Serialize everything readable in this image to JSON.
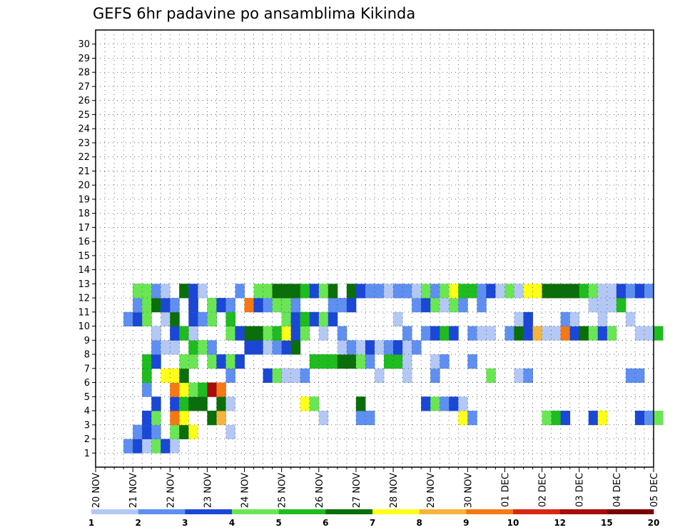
{
  "chart_data": {
    "type": "heatmap",
    "title": "GEFS 6hr padavine po ansamblima Kikinda",
    "y_members": [
      "1",
      "2",
      "3",
      "4",
      "5",
      "6",
      "7",
      "8",
      "9",
      "10",
      "11",
      "12",
      "13",
      "14",
      "15",
      "16",
      "17",
      "18",
      "19",
      "20",
      "21",
      "22",
      "23",
      "24",
      "25",
      "26",
      "27",
      "28",
      "29",
      "30"
    ],
    "x_ticks": [
      "20 NOV",
      "21 NOV",
      "22 NOV",
      "23 NOV",
      "24 NOV",
      "25 NOV",
      "26 NOV",
      "27 NOV",
      "28 NOV",
      "29 NOV",
      "30 NOV",
      "01 DEC",
      "02 DEC",
      "03 DEC",
      "04 DEC",
      "05 DEC"
    ],
    "x_steps_per_day": 4,
    "x_range_steps": [
      0,
      60
    ],
    "grid": true,
    "colorbar": {
      "labels": [
        "1",
        "2",
        "3",
        "4",
        "5",
        "6",
        "7",
        "8",
        "9",
        "10",
        "12",
        "15",
        "20"
      ],
      "colors": [
        "#b4c8f5",
        "#5f8ff0",
        "#1a47d6",
        "#6ae655",
        "#1ebc1e",
        "#0a6e0a",
        "#ffff1a",
        "#f5b43c",
        "#f57814",
        "#d72814",
        "#aa0a0a",
        "#780000"
      ]
    },
    "cells": [
      [
        1,
        3,
        0
      ],
      [
        1,
        3,
        1
      ],
      [
        1,
        4,
        2
      ],
      [
        1,
        5,
        0
      ],
      [
        1,
        6,
        3
      ],
      [
        1,
        7,
        2
      ],
      [
        1,
        8,
        0
      ],
      [
        2,
        4,
        0
      ],
      [
        2,
        4,
        1
      ],
      [
        2,
        5,
        2
      ],
      [
        2,
        6,
        1
      ],
      [
        2,
        8,
        3
      ],
      [
        2,
        9,
        4
      ],
      [
        2,
        9,
        5
      ],
      [
        2,
        10,
        6
      ],
      [
        2,
        14,
        0
      ],
      [
        3,
        5,
        1
      ],
      [
        3,
        5,
        2
      ],
      [
        3,
        6,
        3
      ],
      [
        3,
        8,
        8
      ],
      [
        3,
        9,
        6
      ],
      [
        3,
        12,
        4
      ],
      [
        3,
        12,
        5
      ],
      [
        3,
        13,
        7
      ],
      [
        3,
        24,
        0
      ],
      [
        3,
        28,
        1
      ],
      [
        3,
        29,
        1
      ],
      [
        3,
        39,
        6
      ],
      [
        3,
        40,
        1
      ],
      [
        3,
        48,
        1
      ],
      [
        3,
        48,
        3
      ],
      [
        3,
        49,
        0
      ],
      [
        3,
        49,
        4
      ],
      [
        3,
        50,
        2
      ],
      [
        3,
        53,
        2
      ],
      [
        3,
        54,
        6
      ],
      [
        3,
        58,
        2
      ],
      [
        3,
        59,
        1
      ],
      [
        3,
        60,
        3
      ],
      [
        4,
        6,
        2
      ],
      [
        4,
        8,
        2
      ],
      [
        4,
        9,
        6
      ],
      [
        4,
        9,
        4
      ],
      [
        4,
        10,
        5
      ],
      [
        4,
        11,
        5
      ],
      [
        4,
        13,
        5
      ],
      [
        4,
        14,
        0
      ],
      [
        4,
        22,
        6
      ],
      [
        4,
        23,
        6
      ],
      [
        4,
        23,
        3
      ],
      [
        4,
        28,
        4
      ],
      [
        4,
        28,
        5
      ],
      [
        4,
        35,
        1
      ],
      [
        4,
        35,
        2
      ],
      [
        4,
        36,
        3
      ],
      [
        4,
        37,
        1
      ],
      [
        4,
        38,
        2
      ],
      [
        4,
        39,
        0
      ],
      [
        5,
        5,
        0
      ],
      [
        5,
        5,
        1
      ],
      [
        5,
        8,
        7
      ],
      [
        5,
        8,
        8
      ],
      [
        5,
        9,
        4
      ],
      [
        5,
        9,
        6
      ],
      [
        5,
        10,
        3
      ],
      [
        5,
        11,
        4
      ],
      [
        5,
        12,
        9
      ],
      [
        5,
        12,
        10
      ],
      [
        5,
        13,
        8
      ],
      [
        6,
        5,
        3
      ],
      [
        6,
        5,
        4
      ],
      [
        6,
        7,
        6
      ],
      [
        6,
        8,
        7
      ],
      [
        6,
        8,
        6
      ],
      [
        6,
        9,
        5
      ],
      [
        6,
        14,
        1
      ],
      [
        6,
        18,
        2
      ],
      [
        6,
        19,
        3
      ],
      [
        6,
        20,
        2
      ],
      [
        6,
        20,
        0
      ],
      [
        6,
        21,
        0
      ],
      [
        6,
        22,
        1
      ],
      [
        6,
        30,
        0
      ],
      [
        6,
        33,
        0
      ],
      [
        6,
        36,
        1
      ],
      [
        6,
        42,
        3
      ],
      [
        6,
        45,
        0
      ],
      [
        6,
        46,
        1
      ],
      [
        6,
        57,
        1
      ],
      [
        6,
        58,
        1
      ],
      [
        7,
        5,
        4
      ],
      [
        7,
        6,
        4
      ],
      [
        7,
        6,
        2
      ],
      [
        7,
        9,
        3
      ],
      [
        7,
        10,
        3
      ],
      [
        7,
        12,
        3
      ],
      [
        7,
        13,
        2
      ],
      [
        7,
        14,
        5
      ],
      [
        7,
        14,
        3
      ],
      [
        7,
        15,
        2
      ],
      [
        7,
        23,
        4
      ],
      [
        7,
        24,
        4
      ],
      [
        7,
        25,
        4
      ],
      [
        7,
        26,
        5
      ],
      [
        7,
        27,
        5
      ],
      [
        7,
        28,
        0
      ],
      [
        7,
        28,
        3
      ],
      [
        7,
        29,
        1
      ],
      [
        7,
        31,
        4
      ],
      [
        7,
        32,
        4
      ],
      [
        7,
        33,
        0
      ],
      [
        7,
        36,
        0
      ],
      [
        7,
        37,
        1
      ],
      [
        7,
        40,
        0
      ],
      [
        7,
        40,
        1
      ],
      [
        8,
        6,
        0
      ],
      [
        8,
        6,
        1
      ],
      [
        8,
        7,
        0
      ],
      [
        8,
        8,
        1
      ],
      [
        8,
        8,
        0
      ],
      [
        8,
        10,
        4
      ],
      [
        8,
        11,
        1
      ],
      [
        8,
        11,
        3
      ],
      [
        8,
        12,
        1
      ],
      [
        8,
        16,
        2
      ],
      [
        8,
        17,
        2
      ],
      [
        8,
        18,
        0
      ],
      [
        8,
        19,
        0
      ],
      [
        8,
        19,
        1
      ],
      [
        8,
        20,
        2
      ],
      [
        8,
        21,
        1
      ],
      [
        8,
        21,
        5
      ],
      [
        8,
        26,
        0
      ],
      [
        8,
        27,
        1
      ],
      [
        8,
        28,
        0
      ],
      [
        8,
        29,
        2
      ],
      [
        8,
        30,
        0
      ],
      [
        8,
        31,
        1
      ],
      [
        8,
        32,
        1
      ],
      [
        8,
        32,
        2
      ],
      [
        8,
        33,
        0
      ],
      [
        8,
        34,
        1
      ],
      [
        9,
        6,
        2
      ],
      [
        9,
        6,
        4
      ],
      [
        9,
        6,
        0
      ],
      [
        9,
        8,
        1
      ],
      [
        9,
        8,
        2
      ],
      [
        9,
        9,
        4
      ],
      [
        9,
        10,
        5
      ],
      [
        9,
        10,
        0
      ],
      [
        9,
        14,
        3
      ],
      [
        9,
        15,
        2
      ],
      [
        9,
        16,
        5
      ],
      [
        9,
        17,
        5
      ],
      [
        9,
        18,
        3
      ],
      [
        9,
        19,
        0
      ],
      [
        9,
        19,
        4
      ],
      [
        9,
        20,
        3
      ],
      [
        9,
        20,
        6
      ],
      [
        9,
        21,
        2
      ],
      [
        9,
        22,
        3
      ],
      [
        9,
        24,
        0
      ],
      [
        9,
        26,
        1
      ],
      [
        9,
        33,
        1
      ],
      [
        9,
        35,
        1
      ],
      [
        9,
        36,
        2
      ],
      [
        9,
        37,
        4
      ],
      [
        9,
        38,
        2
      ],
      [
        9,
        40,
        1
      ],
      [
        9,
        41,
        0
      ],
      [
        9,
        42,
        0
      ],
      [
        9,
        44,
        1
      ],
      [
        9,
        45,
        5
      ],
      [
        9,
        46,
        2
      ],
      [
        9,
        47,
        7
      ],
      [
        9,
        48,
        0
      ],
      [
        9,
        49,
        0
      ],
      [
        9,
        50,
        8
      ],
      [
        9,
        51,
        2
      ],
      [
        9,
        52,
        5
      ],
      [
        9,
        53,
        3
      ],
      [
        9,
        54,
        2
      ],
      [
        9,
        55,
        3
      ],
      [
        9,
        58,
        0
      ],
      [
        9,
        59,
        0
      ],
      [
        9,
        60,
        4
      ],
      [
        10,
        3,
        0
      ],
      [
        10,
        3,
        1
      ],
      [
        10,
        4,
        2
      ],
      [
        10,
        5,
        1
      ],
      [
        10,
        5,
        2
      ],
      [
        10,
        5,
        3
      ],
      [
        10,
        7,
        0
      ],
      [
        10,
        8,
        6
      ],
      [
        10,
        8,
        5
      ],
      [
        10,
        10,
        2
      ],
      [
        10,
        11,
        1
      ],
      [
        10,
        12,
        2
      ],
      [
        10,
        12,
        3
      ],
      [
        10,
        14,
        5
      ],
      [
        10,
        14,
        4
      ],
      [
        10,
        20,
        3
      ],
      [
        10,
        21,
        1
      ],
      [
        10,
        21,
        2
      ],
      [
        10,
        22,
        3
      ],
      [
        10,
        22,
        4
      ],
      [
        10,
        23,
        1
      ],
      [
        10,
        23,
        2
      ],
      [
        10,
        24,
        3
      ],
      [
        10,
        25,
        2
      ],
      [
        10,
        32,
        0
      ],
      [
        10,
        45,
        0
      ],
      [
        10,
        46,
        2
      ],
      [
        10,
        50,
        1
      ],
      [
        10,
        51,
        0
      ],
      [
        10,
        54,
        0
      ],
      [
        10,
        57,
        0
      ],
      [
        11,
        4,
        0
      ],
      [
        11,
        4,
        1
      ],
      [
        11,
        5,
        3
      ],
      [
        11,
        6,
        5
      ],
      [
        11,
        7,
        4
      ],
      [
        11,
        7,
        2
      ],
      [
        11,
        8,
        1
      ],
      [
        11,
        10,
        1
      ],
      [
        11,
        10,
        2
      ],
      [
        11,
        12,
        1
      ],
      [
        11,
        12,
        3
      ],
      [
        11,
        13,
        2
      ],
      [
        11,
        14,
        1
      ],
      [
        11,
        16,
        8
      ],
      [
        11,
        17,
        0
      ],
      [
        11,
        17,
        2
      ],
      [
        11,
        18,
        1
      ],
      [
        11,
        19,
        3
      ],
      [
        11,
        20,
        0
      ],
      [
        11,
        20,
        1
      ],
      [
        11,
        20,
        2
      ],
      [
        11,
        20,
        3
      ],
      [
        11,
        21,
        1
      ],
      [
        11,
        25,
        1
      ],
      [
        11,
        26,
        1
      ],
      [
        11,
        27,
        2
      ],
      [
        11,
        34,
        1
      ],
      [
        11,
        35,
        2
      ],
      [
        11,
        36,
        3
      ],
      [
        11,
        37,
        0
      ],
      [
        11,
        38,
        3
      ],
      [
        11,
        39,
        1
      ],
      [
        11,
        41,
        1
      ],
      [
        11,
        53,
        0
      ],
      [
        11,
        54,
        0
      ],
      [
        11,
        55,
        0
      ],
      [
        11,
        56,
        4
      ],
      [
        12,
        4,
        2
      ],
      [
        12,
        4,
        3
      ],
      [
        12,
        5,
        3
      ],
      [
        12,
        6,
        1
      ],
      [
        12,
        7,
        0
      ],
      [
        12,
        9,
        2
      ],
      [
        12,
        9,
        4
      ],
      [
        12,
        9,
        5
      ],
      [
        12,
        10,
        1
      ],
      [
        12,
        10,
        2
      ],
      [
        12,
        11,
        0
      ],
      [
        12,
        15,
        1
      ],
      [
        12,
        17,
        3
      ],
      [
        12,
        18,
        3
      ],
      [
        12,
        19,
        4
      ],
      [
        12,
        19,
        5
      ],
      [
        12,
        20,
        5
      ],
      [
        12,
        21,
        5
      ],
      [
        12,
        22,
        4
      ],
      [
        12,
        23,
        3
      ],
      [
        12,
        23,
        2
      ],
      [
        12,
        24,
        3
      ],
      [
        12,
        25,
        5
      ],
      [
        12,
        27,
        3
      ],
      [
        12,
        27,
        4
      ],
      [
        12,
        27,
        5
      ],
      [
        12,
        28,
        2
      ],
      [
        12,
        29,
        1
      ],
      [
        12,
        30,
        1
      ],
      [
        12,
        31,
        0
      ],
      [
        12,
        32,
        1
      ],
      [
        12,
        33,
        1
      ],
      [
        12,
        34,
        0
      ],
      [
        12,
        35,
        3
      ],
      [
        12,
        36,
        1
      ],
      [
        12,
        37,
        3
      ],
      [
        12,
        38,
        6
      ],
      [
        12,
        39,
        4
      ],
      [
        12,
        40,
        4
      ],
      [
        12,
        41,
        1
      ],
      [
        12,
        42,
        2
      ],
      [
        12,
        43,
        0
      ],
      [
        12,
        44,
        3
      ],
      [
        12,
        45,
        0
      ],
      [
        12,
        46,
        6
      ],
      [
        12,
        47,
        6
      ],
      [
        12,
        48,
        5
      ],
      [
        12,
        49,
        5
      ],
      [
        12,
        50,
        5
      ],
      [
        12,
        51,
        5
      ],
      [
        12,
        52,
        4
      ],
      [
        12,
        53,
        3
      ],
      [
        12,
        54,
        0
      ],
      [
        12,
        55,
        0
      ],
      [
        12,
        56,
        2
      ],
      [
        12,
        57,
        1
      ],
      [
        12,
        58,
        2
      ],
      [
        12,
        59,
        1
      ]
    ]
  }
}
